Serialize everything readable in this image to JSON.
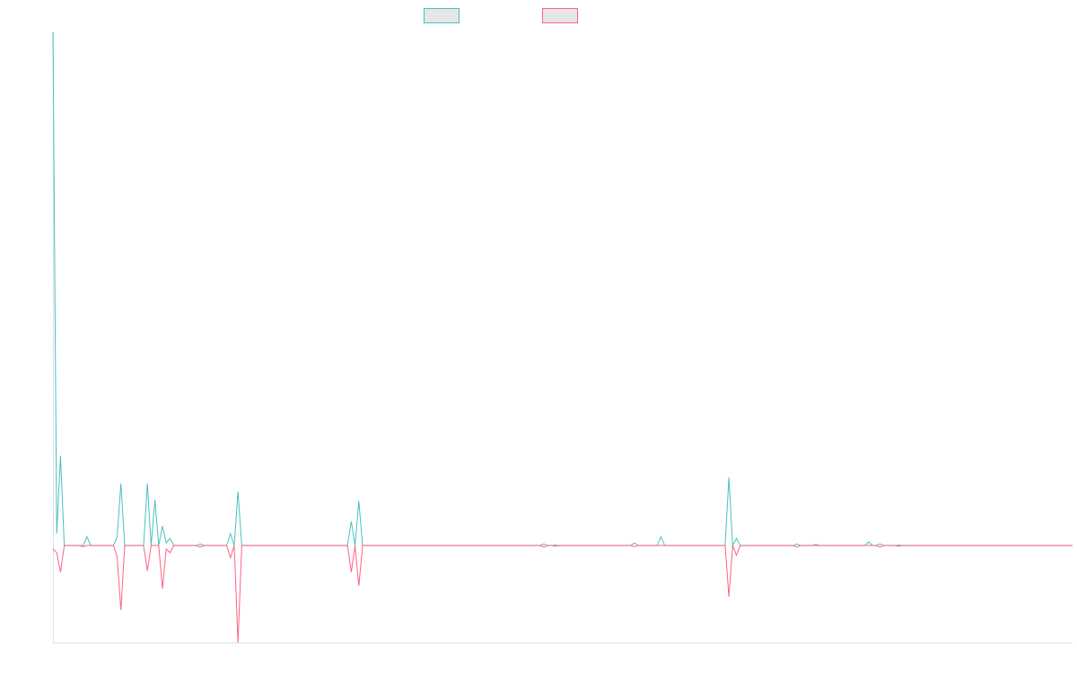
{
  "chart_data": {
    "type": "line",
    "legend": "top",
    "ylim": [
      -18.9,
      100
    ],
    "series": [
      {
        "color": "#4bc0c0",
        "values": [
          100,
          2.3,
          17.5,
          0,
          0,
          0,
          0,
          0,
          0,
          1.7,
          0,
          0,
          0,
          0,
          0,
          0,
          0,
          1.7,
          12.1,
          0,
          0,
          0,
          0,
          0,
          0,
          12.1,
          0,
          8.9,
          0,
          3.8,
          0.5,
          1.4,
          0,
          0,
          0,
          0,
          0,
          0,
          0,
          0.3,
          0,
          0,
          0,
          0,
          0,
          0,
          0,
          2.3,
          0,
          10.5,
          0,
          0,
          0,
          0,
          0,
          0,
          0,
          0,
          0,
          0,
          0,
          0,
          0,
          0,
          0,
          0,
          0,
          0,
          0,
          0,
          0,
          0,
          0,
          0,
          0,
          0,
          0,
          0,
          0,
          4.7,
          0,
          8.7,
          0,
          0,
          0,
          0,
          0,
          0,
          0,
          0,
          0,
          0,
          0,
          0,
          0,
          0,
          0,
          0,
          0,
          0,
          0,
          0,
          0,
          0,
          0,
          0,
          0,
          0,
          0,
          0,
          0,
          0,
          0,
          0,
          0,
          0,
          0,
          0,
          0,
          0,
          0,
          0,
          0,
          0,
          0,
          0,
          0,
          0,
          0,
          0,
          0.3,
          0,
          0,
          0.1,
          0,
          0,
          0,
          0,
          0,
          0,
          0,
          0,
          0,
          0,
          0,
          0,
          0,
          0,
          0,
          0,
          0,
          0,
          0,
          0,
          0.5,
          0,
          0,
          0,
          0,
          0,
          0,
          1.7,
          0,
          0,
          0,
          0,
          0,
          0,
          0,
          0,
          0,
          0,
          0,
          0,
          0,
          0,
          0,
          0,
          0,
          13.3,
          0,
          1.4,
          0,
          0,
          0,
          0,
          0,
          0,
          0,
          0,
          0,
          0,
          0,
          0,
          0,
          0,
          0,
          0.3,
          0,
          0,
          0,
          0,
          0.2,
          0,
          0,
          0,
          0,
          0,
          0,
          0,
          0,
          0,
          0,
          0,
          0,
          0,
          0.7,
          0,
          0,
          0.3,
          0,
          0,
          0,
          0,
          0.1,
          0,
          0,
          0,
          0,
          0,
          0,
          0,
          0,
          0,
          0,
          0,
          0,
          0,
          0,
          0,
          0,
          0,
          0,
          0,
          0,
          0,
          0,
          0,
          0,
          0,
          0,
          0,
          0,
          0,
          0,
          0,
          0,
          0,
          0,
          0,
          0,
          0,
          0,
          0,
          0,
          0,
          0,
          0,
          0,
          0,
          0
        ]
      },
      {
        "color": "#ff6384",
        "values": [
          -0.7,
          -1.4,
          -5.2,
          0,
          0,
          0,
          0,
          0,
          -0.2,
          0,
          0,
          0,
          0,
          0,
          0,
          0,
          0,
          -2.1,
          -12.6,
          0,
          0,
          0,
          0,
          0,
          0,
          -4.9,
          0,
          0,
          0,
          -8.4,
          -0.7,
          -1.4,
          0,
          0,
          0,
          0,
          0,
          0,
          0,
          -0.3,
          0,
          0,
          0,
          0,
          0,
          0,
          0,
          -2.4,
          0,
          -18.9,
          0,
          0,
          0,
          0,
          0,
          0,
          0,
          0,
          0,
          0,
          0,
          0,
          0,
          0,
          0,
          0,
          0,
          0,
          0,
          0,
          0,
          0,
          0,
          0,
          0,
          0,
          0,
          0,
          0,
          -5.2,
          0,
          -7.9,
          0,
          0,
          0,
          0,
          0,
          0,
          0,
          0,
          0,
          0,
          0,
          0,
          0,
          0,
          0,
          0,
          0,
          0,
          0,
          0,
          0,
          0,
          0,
          0,
          0,
          0,
          0,
          0,
          0,
          0,
          0,
          0,
          0,
          0,
          0,
          0,
          0,
          0,
          0,
          0,
          0,
          0,
          0,
          0,
          0,
          0,
          0,
          0,
          -0.3,
          0,
          0,
          -0.1,
          0,
          0,
          0,
          0,
          0,
          0,
          0,
          0,
          0,
          0,
          0,
          0,
          0,
          0,
          0,
          0,
          0,
          0,
          0,
          0,
          -0.2,
          0,
          0,
          0,
          0,
          0,
          0,
          0,
          0,
          0,
          0,
          0,
          0,
          0,
          0,
          0,
          0,
          0,
          0,
          0,
          0,
          0,
          0,
          0,
          0,
          -10,
          0,
          -1.9,
          0,
          0,
          0,
          0,
          0,
          0,
          0,
          0,
          0,
          0,
          0,
          0,
          0,
          0,
          0,
          -0.3,
          0,
          0,
          0,
          0,
          0,
          0,
          0,
          0,
          0,
          0,
          0,
          0,
          0,
          0,
          0,
          0,
          0,
          0,
          0,
          0,
          0,
          -0.3,
          0,
          0,
          0,
          0,
          -0.1,
          0,
          0,
          0,
          0,
          0,
          0,
          0,
          0,
          0,
          0,
          0,
          0,
          0,
          0,
          0,
          0,
          0,
          0,
          0,
          0,
          0,
          0,
          0,
          0,
          0,
          0,
          0,
          0,
          0,
          0,
          0,
          0,
          0,
          0,
          0,
          0,
          0,
          0,
          0,
          0,
          0,
          0,
          0,
          0,
          0,
          0
        ]
      }
    ]
  }
}
